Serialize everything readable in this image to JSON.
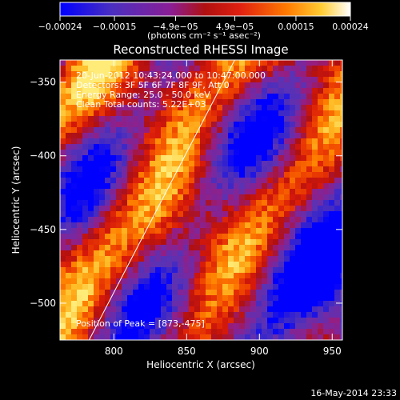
{
  "chart_data": {
    "type": "heatmap",
    "title": "Reconstructed RHESSI Image",
    "xlabel": "Heliocentric X (arcsec)",
    "ylabel": "Heliocentric Y (arcsec)",
    "xlim": [
      763,
      957
    ],
    "ylim": [
      -525,
      -335
    ],
    "x_ticks": [
      800,
      850,
      900,
      950
    ],
    "x_tick_labels": [
      "800",
      "850",
      "900",
      "950"
    ],
    "y_ticks": [
      -350,
      -400,
      -450,
      -500
    ],
    "y_tick_labels": [
      "−350",
      "−400",
      "−450",
      "−500"
    ],
    "colorbar": {
      "range": [
        -0.00024,
        0.00024
      ],
      "tick_labels": [
        "−0.00024",
        "−0.00015",
        "−4.9e−05",
        "4.9e−05",
        "0.00015",
        "0.00024"
      ],
      "units_label": "(photons cm⁻² s⁻¹ asec⁻²)",
      "colors": [
        "#0000ff",
        "#5b2fb0",
        "#8a1e96",
        "#d81414",
        "#ff7a00",
        "#ffcc33",
        "#ffffff"
      ]
    },
    "annotations": [
      "20-Jun-2012 10:43:24.000 to 10:47:00.000",
      "Detectors: 3F 5F 6F 7F 8F 9F, Att 0",
      "Energy Range: 25.0 - 50.0 keV",
      "Clean     Total counts: 5.22E+03"
    ],
    "peak_label": "Position of Peak = [873,-475]",
    "peak_position": [
      873,
      -475
    ],
    "limb_line": [
      [
        783,
        -525
      ],
      [
        883,
        -335
      ]
    ],
    "grid": false,
    "legend": "none"
  },
  "footer_timestamp": "16-May-2014 23:33"
}
